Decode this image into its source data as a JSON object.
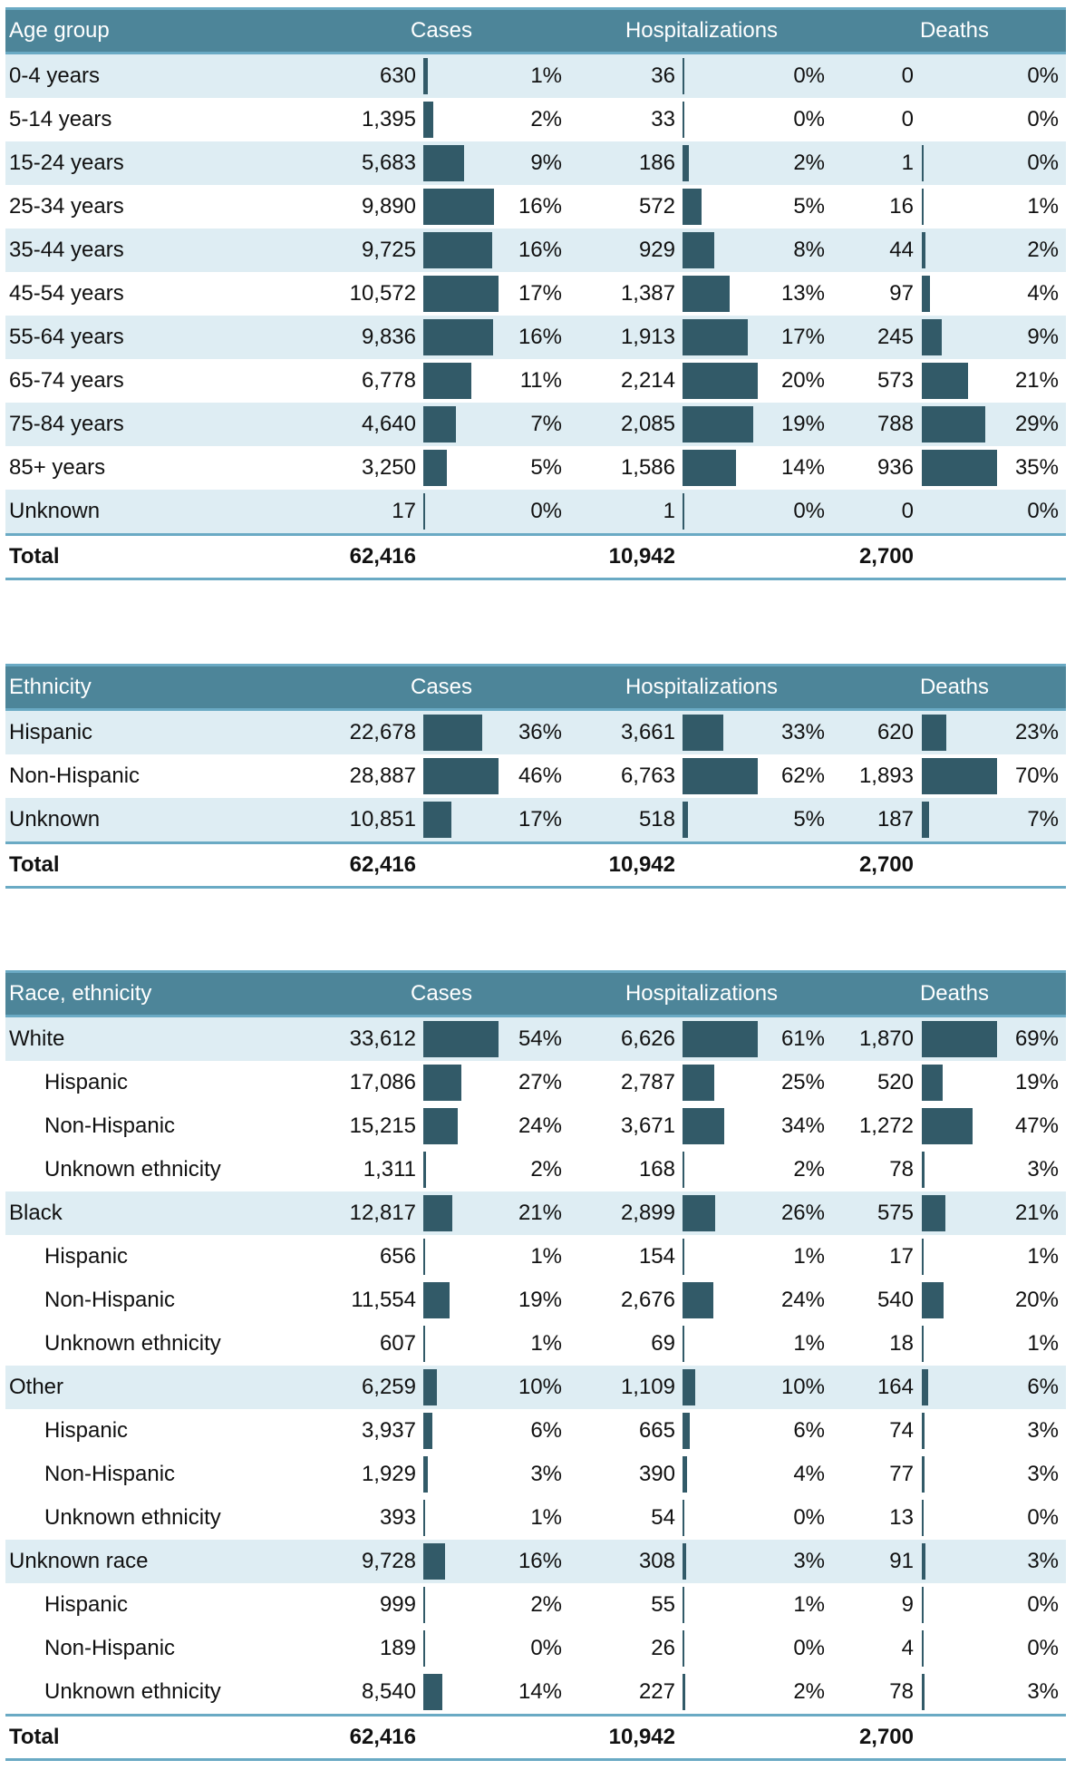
{
  "colors": {
    "header_bg": "#4d8599",
    "rule": "#6aaac4",
    "alt_row": "#deedf3",
    "bar": "#325a68"
  },
  "column_headers": {
    "cases": "Cases",
    "hospitalizations": "Hospitalizations",
    "deaths": "Deaths"
  },
  "tables": [
    {
      "id": "age",
      "title": "Age group",
      "rows": [
        {
          "label": "0-4 years",
          "cases": "630",
          "cases_pct": "1%",
          "hosp": "36",
          "hosp_pct": "0%",
          "deaths": "0",
          "deaths_pct": "0%"
        },
        {
          "label": "5-14 years",
          "cases": "1,395",
          "cases_pct": "2%",
          "hosp": "33",
          "hosp_pct": "0%",
          "deaths": "0",
          "deaths_pct": "0%"
        },
        {
          "label": "15-24 years",
          "cases": "5,683",
          "cases_pct": "9%",
          "hosp": "186",
          "hosp_pct": "2%",
          "deaths": "1",
          "deaths_pct": "0%"
        },
        {
          "label": "25-34 years",
          "cases": "9,890",
          "cases_pct": "16%",
          "hosp": "572",
          "hosp_pct": "5%",
          "deaths": "16",
          "deaths_pct": "1%"
        },
        {
          "label": "35-44 years",
          "cases": "9,725",
          "cases_pct": "16%",
          "hosp": "929",
          "hosp_pct": "8%",
          "deaths": "44",
          "deaths_pct": "2%"
        },
        {
          "label": "45-54 years",
          "cases": "10,572",
          "cases_pct": "17%",
          "hosp": "1,387",
          "hosp_pct": "13%",
          "deaths": "97",
          "deaths_pct": "4%"
        },
        {
          "label": "55-64 years",
          "cases": "9,836",
          "cases_pct": "16%",
          "hosp": "1,913",
          "hosp_pct": "17%",
          "deaths": "245",
          "deaths_pct": "9%"
        },
        {
          "label": "65-74 years",
          "cases": "6,778",
          "cases_pct": "11%",
          "hosp": "2,214",
          "hosp_pct": "20%",
          "deaths": "573",
          "deaths_pct": "21%"
        },
        {
          "label": "75-84 years",
          "cases": "4,640",
          "cases_pct": "7%",
          "hosp": "2,085",
          "hosp_pct": "19%",
          "deaths": "788",
          "deaths_pct": "29%"
        },
        {
          "label": "85+ years",
          "cases": "3,250",
          "cases_pct": "5%",
          "hosp": "1,586",
          "hosp_pct": "14%",
          "deaths": "936",
          "deaths_pct": "35%"
        },
        {
          "label": "Unknown",
          "cases": "17",
          "cases_pct": "0%",
          "hosp": "1",
          "hosp_pct": "0%",
          "deaths": "0",
          "deaths_pct": "0%"
        }
      ],
      "total": {
        "label": "Total",
        "cases": "62,416",
        "hosp": "10,942",
        "deaths": "2,700"
      }
    },
    {
      "id": "ethnicity",
      "title": "Ethnicity",
      "rows": [
        {
          "label": "Hispanic",
          "cases": "22,678",
          "cases_pct": "36%",
          "hosp": "3,661",
          "hosp_pct": "33%",
          "deaths": "620",
          "deaths_pct": "23%"
        },
        {
          "label": "Non-Hispanic",
          "cases": "28,887",
          "cases_pct": "46%",
          "hosp": "6,763",
          "hosp_pct": "62%",
          "deaths": "1,893",
          "deaths_pct": "70%"
        },
        {
          "label": "Unknown",
          "cases": "10,851",
          "cases_pct": "17%",
          "hosp": "518",
          "hosp_pct": "5%",
          "deaths": "187",
          "deaths_pct": "7%"
        }
      ],
      "total": {
        "label": "Total",
        "cases": "62,416",
        "hosp": "10,942",
        "deaths": "2,700"
      }
    },
    {
      "id": "race",
      "title": "Race, ethnicity",
      "rows": [
        {
          "label": "White",
          "level": 0,
          "cases": "33,612",
          "cases_pct": "54%",
          "hosp": "6,626",
          "hosp_pct": "61%",
          "deaths": "1,870",
          "deaths_pct": "69%"
        },
        {
          "label": "Hispanic",
          "level": 1,
          "cases": "17,086",
          "cases_pct": "27%",
          "hosp": "2,787",
          "hosp_pct": "25%",
          "deaths": "520",
          "deaths_pct": "19%"
        },
        {
          "label": "Non-Hispanic",
          "level": 1,
          "cases": "15,215",
          "cases_pct": "24%",
          "hosp": "3,671",
          "hosp_pct": "34%",
          "deaths": "1,272",
          "deaths_pct": "47%"
        },
        {
          "label": "Unknown ethnicity",
          "level": 1,
          "cases": "1,311",
          "cases_pct": "2%",
          "hosp": "168",
          "hosp_pct": "2%",
          "deaths": "78",
          "deaths_pct": "3%"
        },
        {
          "label": "Black",
          "level": 0,
          "cases": "12,817",
          "cases_pct": "21%",
          "hosp": "2,899",
          "hosp_pct": "26%",
          "deaths": "575",
          "deaths_pct": "21%"
        },
        {
          "label": "Hispanic",
          "level": 1,
          "cases": "656",
          "cases_pct": "1%",
          "hosp": "154",
          "hosp_pct": "1%",
          "deaths": "17",
          "deaths_pct": "1%"
        },
        {
          "label": "Non-Hispanic",
          "level": 1,
          "cases": "11,554",
          "cases_pct": "19%",
          "hosp": "2,676",
          "hosp_pct": "24%",
          "deaths": "540",
          "deaths_pct": "20%"
        },
        {
          "label": "Unknown ethnicity",
          "level": 1,
          "cases": "607",
          "cases_pct": "1%",
          "hosp": "69",
          "hosp_pct": "1%",
          "deaths": "18",
          "deaths_pct": "1%"
        },
        {
          "label": "Other",
          "level": 0,
          "cases": "6,259",
          "cases_pct": "10%",
          "hosp": "1,109",
          "hosp_pct": "10%",
          "deaths": "164",
          "deaths_pct": "6%"
        },
        {
          "label": "Hispanic",
          "level": 1,
          "cases": "3,937",
          "cases_pct": "6%",
          "hosp": "665",
          "hosp_pct": "6%",
          "deaths": "74",
          "deaths_pct": "3%"
        },
        {
          "label": "Non-Hispanic",
          "level": 1,
          "cases": "1,929",
          "cases_pct": "3%",
          "hosp": "390",
          "hosp_pct": "4%",
          "deaths": "77",
          "deaths_pct": "3%"
        },
        {
          "label": "Unknown ethnicity",
          "level": 1,
          "cases": "393",
          "cases_pct": "1%",
          "hosp": "54",
          "hosp_pct": "0%",
          "deaths": "13",
          "deaths_pct": "0%"
        },
        {
          "label": "Unknown race",
          "level": 0,
          "cases": "9,728",
          "cases_pct": "16%",
          "hosp": "308",
          "hosp_pct": "3%",
          "deaths": "91",
          "deaths_pct": "3%"
        },
        {
          "label": "Hispanic",
          "level": 1,
          "cases": "999",
          "cases_pct": "2%",
          "hosp": "55",
          "hosp_pct": "1%",
          "deaths": "9",
          "deaths_pct": "0%"
        },
        {
          "label": "Non-Hispanic",
          "level": 1,
          "cases": "189",
          "cases_pct": "0%",
          "hosp": "26",
          "hosp_pct": "0%",
          "deaths": "4",
          "deaths_pct": "0%"
        },
        {
          "label": "Unknown ethnicity",
          "level": 1,
          "cases": "8,540",
          "cases_pct": "14%",
          "hosp": "227",
          "hosp_pct": "2%",
          "deaths": "78",
          "deaths_pct": "3%"
        }
      ],
      "total": {
        "label": "Total",
        "cases": "62,416",
        "hosp": "10,942",
        "deaths": "2,700"
      }
    }
  ]
}
